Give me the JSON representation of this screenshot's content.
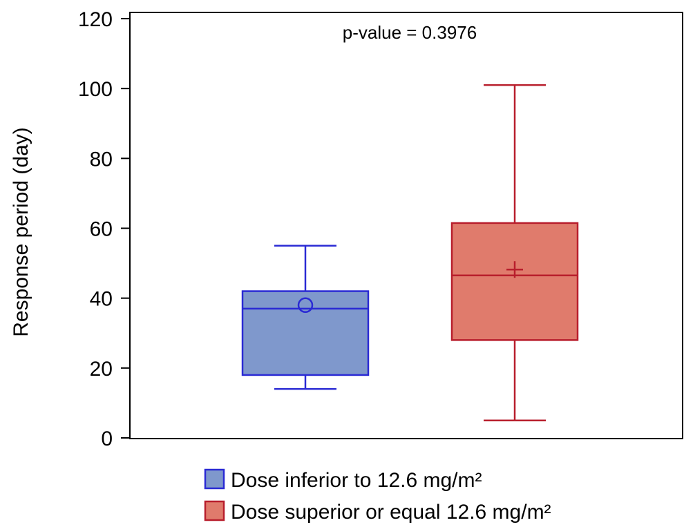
{
  "chart_data": {
    "type": "box",
    "title": "",
    "annotation": "p-value = 0.3976",
    "xlabel": "",
    "ylabel": "Response period (day)",
    "ylim": [
      0,
      120
    ],
    "yticks": [
      0,
      20,
      40,
      60,
      80,
      100,
      120
    ],
    "grid": false,
    "legend_position": "bottom",
    "series": [
      {
        "name": "Dose inferior to 12.6 mg/m²",
        "color": "#2a2ad4",
        "fill": "#7f98cc",
        "min": 14,
        "q1": 18,
        "median": 37,
        "q3": 42,
        "max": 55,
        "mean": 38,
        "mean_marker": "circle"
      },
      {
        "name": "Dose superior or equal 12.6 mg/m²",
        "color": "#b81e2c",
        "fill": "#e07b6c",
        "min": 5,
        "q1": 28,
        "median": 46.5,
        "q3": 61.5,
        "max": 101,
        "mean": 48.2,
        "mean_marker": "plus"
      }
    ]
  }
}
